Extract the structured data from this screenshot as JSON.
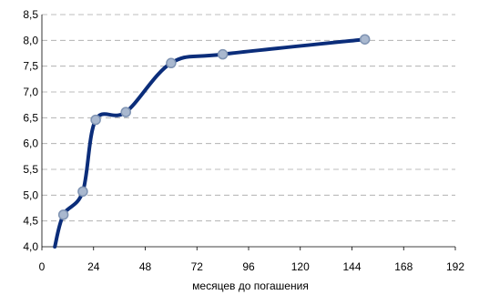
{
  "chart_data": {
    "type": "line",
    "title": "",
    "xlabel": "месяцев до погашения",
    "ylabel": "",
    "xlim": [
      0,
      192
    ],
    "ylim": [
      4.0,
      8.5
    ],
    "x_ticks": [
      0,
      24,
      48,
      72,
      96,
      120,
      144,
      168,
      192
    ],
    "x_tick_labels": [
      "0",
      "24",
      "48",
      "72",
      "96",
      "120",
      "144",
      "168",
      "192"
    ],
    "y_ticks": [
      4.0,
      4.5,
      5.0,
      5.5,
      6.0,
      6.5,
      7.0,
      7.5,
      8.0,
      8.5
    ],
    "y_tick_labels": [
      "4,0",
      "4,5",
      "5,0",
      "5,5",
      "6,0",
      "6,5",
      "7,0",
      "7,5",
      "8,0",
      "8,5"
    ],
    "grid": "horizontal-dashed",
    "legend": "none",
    "series": [
      {
        "points": [
          {
            "x": 10,
            "y": 4.62
          },
          {
            "x": 19,
            "y": 5.07
          },
          {
            "x": 25,
            "y": 6.46
          },
          {
            "x": 39,
            "y": 6.61
          },
          {
            "x": 60,
            "y": 7.56
          },
          {
            "x": 84,
            "y": 7.73
          },
          {
            "x": 150,
            "y": 8.02
          }
        ],
        "curve_start": {
          "x": 6,
          "y": 4.0
        },
        "line_color": "#0b2d7a",
        "marker_fill": "#a9b8cf",
        "marker_stroke": "#7f93b2"
      }
    ]
  }
}
